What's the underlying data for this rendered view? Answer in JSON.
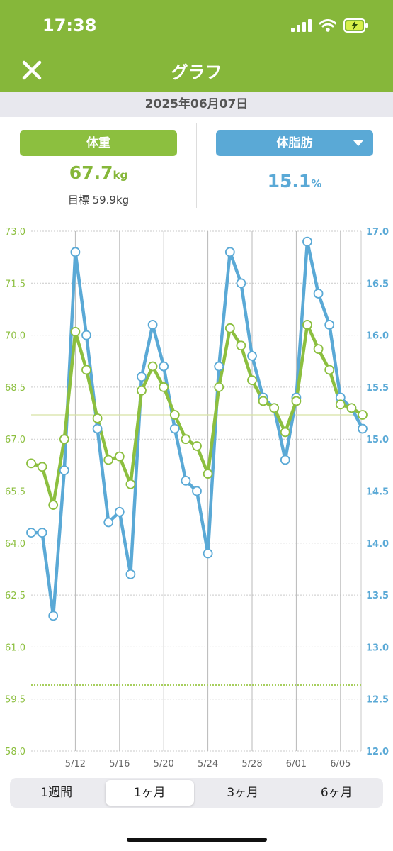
{
  "status": {
    "time": "17:38"
  },
  "nav": {
    "title": "グラフ"
  },
  "date": "2025年06月07日",
  "weight": {
    "label": "体重",
    "value": "67.7",
    "unit": "kg",
    "goal": "目標 59.9kg"
  },
  "bodyfat": {
    "label": "体脂肪",
    "value": "15.1",
    "unit": "%"
  },
  "tabs": [
    {
      "label": "1週間",
      "active": false
    },
    {
      "label": "1ヶ月",
      "active": true
    },
    {
      "label": "3ヶ月",
      "active": false
    },
    {
      "label": "6ヶ月",
      "active": false
    }
  ],
  "colors": {
    "header": "#86b73a",
    "weight": "#8cbf3f",
    "bodyfat": "#5aa9d6"
  },
  "icons": {
    "close": "close-icon",
    "dropdown": "chevron-down-icon",
    "signal": "signal-icon",
    "wifi": "wifi-icon",
    "battery": "battery-charging-icon"
  },
  "chart_data": {
    "type": "line",
    "x": [
      "5/08",
      "5/09",
      "5/10",
      "5/11",
      "5/12",
      "5/13",
      "5/14",
      "5/15",
      "5/16",
      "5/17",
      "5/18",
      "5/19",
      "5/20",
      "5/21",
      "5/22",
      "5/23",
      "5/24",
      "5/25",
      "5/26",
      "5/27",
      "5/28",
      "5/29",
      "5/30",
      "5/31",
      "6/01",
      "6/02",
      "6/03",
      "6/04",
      "6/05",
      "6/06",
      "6/07"
    ],
    "x_ticks": [
      "5/12",
      "5/16",
      "5/20",
      "5/24",
      "5/28",
      "6/01",
      "6/05"
    ],
    "y_left": {
      "ticks": [
        "73.0",
        "71.5",
        "70.0",
        "68.5",
        "67.0",
        "65.5",
        "64.0",
        "62.5",
        "61.0",
        "59.5",
        "58.0"
      ],
      "range": [
        58.0,
        73.0
      ]
    },
    "y_right": {
      "ticks": [
        "17.0",
        "16.5",
        "16.0",
        "15.5",
        "15.0",
        "14.5",
        "14.0",
        "13.5",
        "13.0",
        "12.5",
        "12.0"
      ],
      "range": [
        12.0,
        17.0
      ]
    },
    "goal_weight": 59.9,
    "current_weight": 67.7,
    "series": [
      {
        "axis": "left",
        "color": "#8cbf3f",
        "values": [
          66.3,
          66.2,
          65.1,
          67.0,
          70.1,
          69.0,
          67.6,
          66.4,
          66.5,
          65.7,
          68.4,
          69.1,
          68.5,
          67.7,
          67.0,
          66.8,
          66.0,
          68.5,
          70.2,
          69.7,
          68.7,
          68.1,
          67.9,
          67.2,
          68.1,
          70.3,
          69.6,
          69.0,
          68.0,
          67.9,
          67.7
        ]
      },
      {
        "axis": "right",
        "color": "#5aa9d6",
        "values": [
          14.1,
          14.1,
          13.3,
          14.7,
          16.8,
          16.0,
          15.1,
          14.2,
          14.3,
          13.7,
          15.6,
          16.1,
          15.7,
          15.1,
          14.6,
          14.5,
          13.9,
          15.7,
          16.8,
          16.5,
          15.8,
          15.4,
          15.3,
          14.8,
          15.4,
          16.9,
          16.4,
          16.1,
          15.4,
          15.3,
          15.1
        ]
      }
    ]
  }
}
